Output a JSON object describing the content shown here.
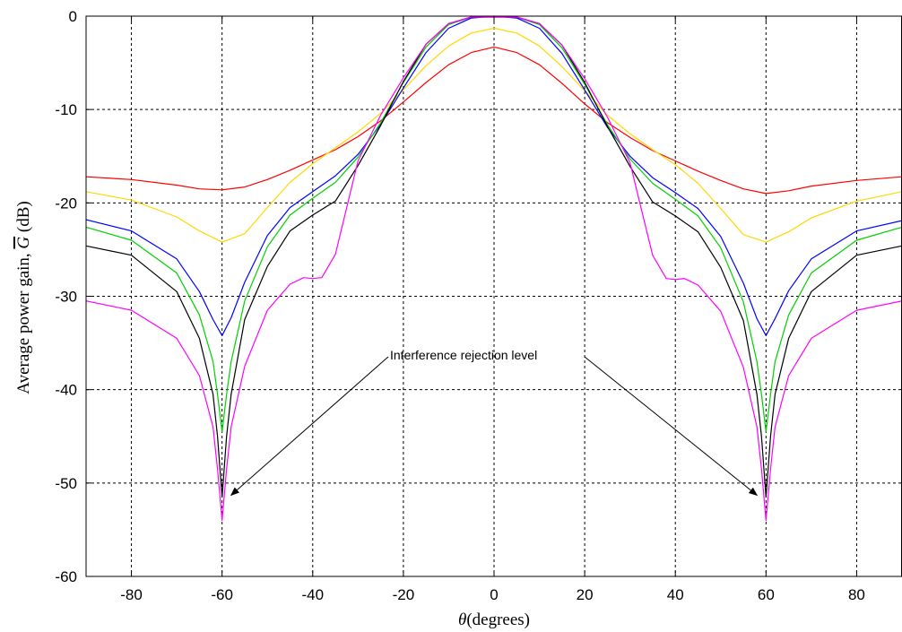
{
  "chart_data": {
    "type": "line",
    "title": "",
    "xlabel_symbol": "θ",
    "xlabel_rest": "(degrees)",
    "ylabel_prefix": "Average power gain, ",
    "ylabel_symbol": "G",
    "ylabel_suffix": " (dB)",
    "xlim": [
      -90,
      90
    ],
    "ylim": [
      -60,
      0
    ],
    "xticks": [
      -80,
      -60,
      -40,
      -20,
      0,
      20,
      40,
      60,
      80
    ],
    "yticks": [
      0,
      -10,
      -20,
      -30,
      -40,
      -50,
      -60
    ],
    "grid": true,
    "annotation": {
      "text": "Interference rejection level",
      "points_to": [
        [
          -60,
          -51.5
        ],
        [
          60,
          -51.5
        ]
      ]
    },
    "series": [
      {
        "color": "#ff0000",
        "x": [
          -90,
          -80,
          -70,
          -65,
          -60,
          -55,
          -50,
          -45,
          -40,
          -35,
          -30,
          -25,
          -20,
          -15,
          -10,
          -5,
          0,
          5,
          10,
          15,
          20,
          25,
          30,
          35,
          40,
          45,
          50,
          55,
          60,
          65,
          70,
          80,
          90
        ],
        "y": [
          -17.2,
          -17.5,
          -18.1,
          -18.5,
          -18.6,
          -18.3,
          -17.5,
          -16.5,
          -15.4,
          -14.3,
          -12.9,
          -11.2,
          -9.2,
          -7.1,
          -5.2,
          -3.9,
          -3.3,
          -3.9,
          -5.2,
          -7.2,
          -9.4,
          -11.4,
          -13.0,
          -14.4,
          -15.5,
          -16.6,
          -17.6,
          -18.5,
          -19.0,
          -18.7,
          -18.2,
          -17.6,
          -17.2
        ]
      },
      {
        "color": "#ffd800",
        "x": [
          -90,
          -80,
          -70,
          -65,
          -60,
          -55,
          -50,
          -45,
          -40,
          -35,
          -30,
          -25,
          -20,
          -15,
          -10,
          -5,
          0,
          5,
          10,
          15,
          20,
          25,
          30,
          35,
          40,
          45,
          50,
          55,
          60,
          65,
          70,
          80,
          90
        ],
        "y": [
          -18.8,
          -19.7,
          -21.5,
          -23.0,
          -24.2,
          -23.3,
          -20.5,
          -17.8,
          -15.8,
          -14.1,
          -12.4,
          -10.4,
          -7.9,
          -5.3,
          -3.2,
          -1.8,
          -1.3,
          -1.8,
          -3.2,
          -5.4,
          -8.0,
          -10.6,
          -12.6,
          -14.3,
          -15.9,
          -17.9,
          -20.6,
          -23.4,
          -24.2,
          -23.1,
          -21.6,
          -19.8,
          -18.8
        ]
      },
      {
        "color": "#0000ff",
        "x": [
          -90,
          -80,
          -70,
          -65,
          -62,
          -60,
          -58,
          -55,
          -50,
          -45,
          -40,
          -35,
          -30,
          -25,
          -20,
          -15,
          -10,
          -5,
          0,
          5,
          10,
          15,
          20,
          25,
          30,
          35,
          40,
          45,
          50,
          55,
          58,
          60,
          62,
          65,
          70,
          80,
          90
        ],
        "y": [
          -21.8,
          -23.0,
          -26.0,
          -29.5,
          -32.5,
          -34.2,
          -32.3,
          -28.5,
          -23.5,
          -20.5,
          -18.8,
          -17.1,
          -14.8,
          -11.6,
          -7.7,
          -3.9,
          -1.3,
          -0.2,
          0.0,
          -0.2,
          -1.3,
          -4.0,
          -7.9,
          -11.9,
          -15.0,
          -17.3,
          -18.9,
          -20.6,
          -23.6,
          -28.6,
          -32.4,
          -34.2,
          -32.4,
          -29.4,
          -26.0,
          -23.0,
          -21.9
        ]
      },
      {
        "color": "#00d000",
        "x": [
          -90,
          -80,
          -70,
          -65,
          -62,
          -61,
          -60,
          -59,
          -58,
          -55,
          -50,
          -45,
          -40,
          -35,
          -30,
          -25,
          -20,
          -15,
          -10,
          -5,
          0,
          5,
          10,
          15,
          20,
          25,
          30,
          35,
          40,
          45,
          50,
          55,
          58,
          59,
          60,
          61,
          62,
          65,
          70,
          80,
          90
        ],
        "y": [
          -22.6,
          -24.0,
          -27.5,
          -32.0,
          -37.0,
          -40.5,
          -44.5,
          -40.5,
          -37.0,
          -30.5,
          -24.7,
          -21.3,
          -19.5,
          -17.8,
          -15.1,
          -11.4,
          -7.1,
          -3.3,
          -0.9,
          -0.1,
          -0.1,
          -0.1,
          -0.9,
          -3.4,
          -7.3,
          -11.6,
          -15.3,
          -17.9,
          -19.6,
          -21.4,
          -24.8,
          -30.6,
          -37.0,
          -40.5,
          -44.5,
          -40.5,
          -37.0,
          -32.0,
          -27.5,
          -24.0,
          -22.6
        ]
      },
      {
        "color": "#000000",
        "x": [
          -90,
          -80,
          -70,
          -65,
          -62,
          -61,
          -60,
          -59,
          -58,
          -55,
          -50,
          -45,
          -40,
          -35,
          -30,
          -25,
          -20,
          -15,
          -10,
          -5,
          0,
          5,
          10,
          15,
          20,
          25,
          30,
          35,
          40,
          45,
          50,
          55,
          58,
          59,
          60,
          61,
          62,
          65,
          70,
          80,
          90
        ],
        "y": [
          -24.6,
          -25.6,
          -29.5,
          -34.5,
          -40.5,
          -45.0,
          -51.5,
          -45.0,
          -40.5,
          -32.5,
          -26.8,
          -23.0,
          -21.3,
          -19.8,
          -16.0,
          -11.7,
          -7.0,
          -3.0,
          -0.8,
          -0.1,
          -0.1,
          -0.1,
          -0.8,
          -3.1,
          -7.1,
          -11.8,
          -16.1,
          -19.9,
          -21.4,
          -23.1,
          -26.9,
          -32.6,
          -40.5,
          -45.0,
          -51.5,
          -45.0,
          -40.5,
          -34.5,
          -29.5,
          -25.6,
          -24.6
        ]
      },
      {
        "color": "#ff00ff",
        "x": [
          -90,
          -80,
          -70,
          -65,
          -62,
          -61,
          -60,
          -59,
          -58,
          -55,
          -50,
          -45,
          -42,
          -40,
          -38,
          -35,
          -32,
          -30,
          -25,
          -20,
          -15,
          -10,
          -5,
          0,
          5,
          10,
          15,
          20,
          25,
          30,
          32,
          35,
          38,
          40,
          42,
          45,
          50,
          55,
          58,
          59,
          60,
          61,
          62,
          65,
          70,
          80,
          90
        ],
        "y": [
          -30.5,
          -31.5,
          -34.5,
          -38.5,
          -44.0,
          -48.5,
          -54.0,
          -48.5,
          -44.0,
          -37.5,
          -31.5,
          -28.7,
          -28.0,
          -28.1,
          -28.0,
          -25.5,
          -19.5,
          -15.5,
          -10.6,
          -6.6,
          -3.0,
          -0.8,
          -0.1,
          -0.1,
          -0.1,
          -0.8,
          -3.1,
          -6.7,
          -10.8,
          -15.7,
          -19.7,
          -25.6,
          -28.1,
          -28.2,
          -28.1,
          -28.8,
          -31.6,
          -37.6,
          -44.0,
          -48.5,
          -54.0,
          -48.5,
          -44.0,
          -38.5,
          -34.5,
          -31.5,
          -30.5
        ]
      }
    ]
  }
}
